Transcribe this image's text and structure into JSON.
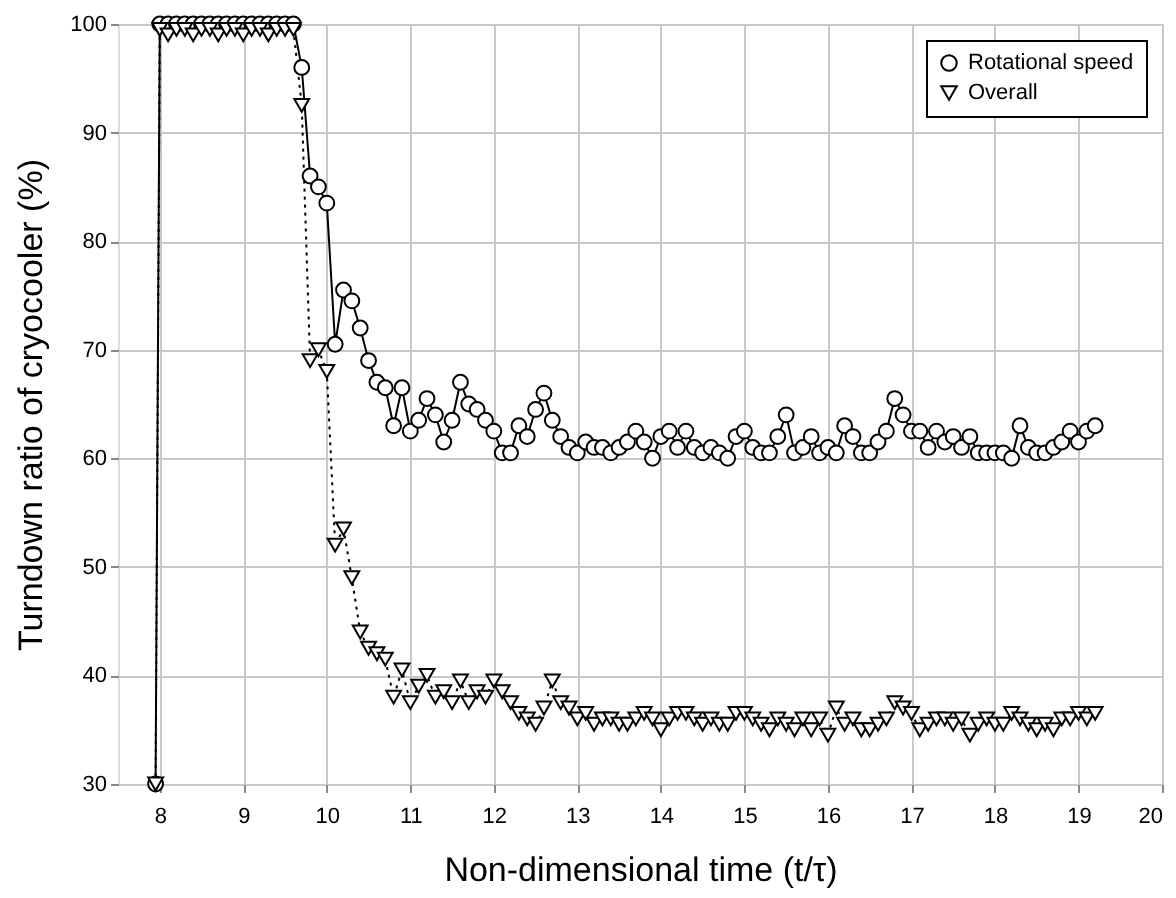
{
  "chart_data": {
    "type": "line",
    "xlabel": "Non-dimensional time (t/τ)",
    "ylabel": "Turndown ratio of cryocooler (%)",
    "x": [
      7.95,
      8.0,
      8.1,
      8.2,
      8.3,
      8.4,
      8.5,
      8.6,
      8.7,
      8.8,
      8.9,
      9.0,
      9.1,
      9.2,
      9.3,
      9.4,
      9.5,
      9.6,
      9.7,
      9.8,
      9.9,
      10.0,
      10.1,
      10.2,
      10.3,
      10.4,
      10.5,
      10.6,
      10.7,
      10.8,
      10.9,
      11.0,
      11.1,
      11.2,
      11.3,
      11.4,
      11.5,
      11.6,
      11.7,
      11.8,
      11.9,
      12.0,
      12.1,
      12.2,
      12.3,
      12.4,
      12.5,
      12.6,
      12.7,
      12.8,
      12.9,
      13.0,
      13.1,
      13.2,
      13.3,
      13.4,
      13.5,
      13.6,
      13.7,
      13.8,
      13.9,
      14.0,
      14.1,
      14.2,
      14.3,
      14.4,
      14.5,
      14.6,
      14.7,
      14.8,
      14.9,
      15.0,
      15.1,
      15.2,
      15.3,
      15.4,
      15.5,
      15.6,
      15.7,
      15.8,
      15.9,
      16.0,
      16.1,
      16.2,
      16.3,
      16.4,
      16.5,
      16.6,
      16.7,
      16.8,
      16.9,
      17.0,
      17.1,
      17.2,
      17.3,
      17.4,
      17.5,
      17.6,
      17.7,
      17.8,
      17.9,
      18.0,
      18.1,
      18.2,
      18.3,
      18.4,
      18.5,
      18.6,
      18.7,
      18.8,
      18.9,
      19.0,
      19.1,
      19.2
    ],
    "series": [
      {
        "name": "Rotational speed",
        "color": "#000000",
        "marker": "circle",
        "line_style": "solid",
        "values": [
          30,
          100,
          100,
          100,
          100,
          100,
          100,
          100,
          100,
          100,
          100,
          100,
          100,
          100,
          100,
          100,
          100,
          100,
          96,
          86,
          85,
          83.5,
          70.5,
          75.5,
          74.5,
          72,
          69,
          67,
          66.5,
          63,
          66.5,
          62.5,
          63.5,
          65.5,
          64,
          61.5,
          63.5,
          67,
          65,
          64.5,
          63.5,
          62.5,
          60.5,
          60.5,
          63,
          62,
          64.5,
          66,
          63.5,
          62,
          61,
          60.5,
          61.5,
          61,
          61,
          60.5,
          61,
          61.5,
          62.5,
          61.5,
          60,
          62,
          62.5,
          61,
          62.5,
          61,
          60.5,
          61,
          60.5,
          60,
          62,
          62.5,
          61,
          60.5,
          60.5,
          62,
          64,
          60.5,
          61,
          62,
          60.5,
          61,
          60.5,
          63,
          62,
          60.5,
          60.5,
          61.5,
          62.5,
          65.5,
          64,
          62.5,
          62.5,
          61,
          62.5,
          61.5,
          62,
          61,
          62,
          60.5,
          60.5,
          60.5,
          60.5,
          60,
          63,
          61,
          60.5,
          60.5,
          61,
          61.5,
          62.5,
          61.5,
          62.5,
          63
        ]
      },
      {
        "name": "Overall",
        "color": "#000000",
        "marker": "triangle",
        "line_style": "dotted",
        "values": [
          30,
          99.5,
          99,
          99.5,
          99.5,
          99,
          99.5,
          99.5,
          99,
          99.5,
          99.5,
          99,
          99.5,
          99.5,
          99,
          99.5,
          99.5,
          99.5,
          92.5,
          69,
          70,
          68,
          52,
          53.5,
          49,
          44,
          42.5,
          42,
          41.5,
          38,
          40.5,
          37.5,
          39,
          40,
          38,
          38.5,
          37.5,
          39.5,
          37.5,
          38.5,
          38,
          39.5,
          38.5,
          37.5,
          36.5,
          36,
          35.5,
          37,
          39.5,
          37.5,
          37,
          36,
          36.5,
          35.5,
          36,
          36,
          35.5,
          35.5,
          36,
          36.5,
          36,
          35,
          36,
          36.5,
          36.5,
          36,
          35.5,
          36,
          35.5,
          35.5,
          36.5,
          36.5,
          36,
          35.5,
          35,
          36,
          35.5,
          35,
          36,
          35,
          36,
          34.5,
          37,
          35.5,
          36,
          35,
          35,
          35.5,
          36,
          37.5,
          37,
          36.5,
          35,
          35.5,
          36,
          36,
          35.5,
          36,
          34.5,
          35.5,
          36,
          35.5,
          35.5,
          36.5,
          36,
          35.5,
          35,
          35.5,
          35,
          36,
          36,
          36.5,
          36,
          36.5
        ]
      }
    ],
    "xlim": [
      7.5,
      20
    ],
    "xticks": [
      8,
      9,
      10,
      11,
      12,
      13,
      14,
      15,
      16,
      17,
      18,
      19,
      20
    ],
    "ylim": [
      30,
      100
    ],
    "yticks": [
      30,
      40,
      50,
      60,
      70,
      80,
      90,
      100
    ],
    "grid": true,
    "legend": "top right"
  }
}
